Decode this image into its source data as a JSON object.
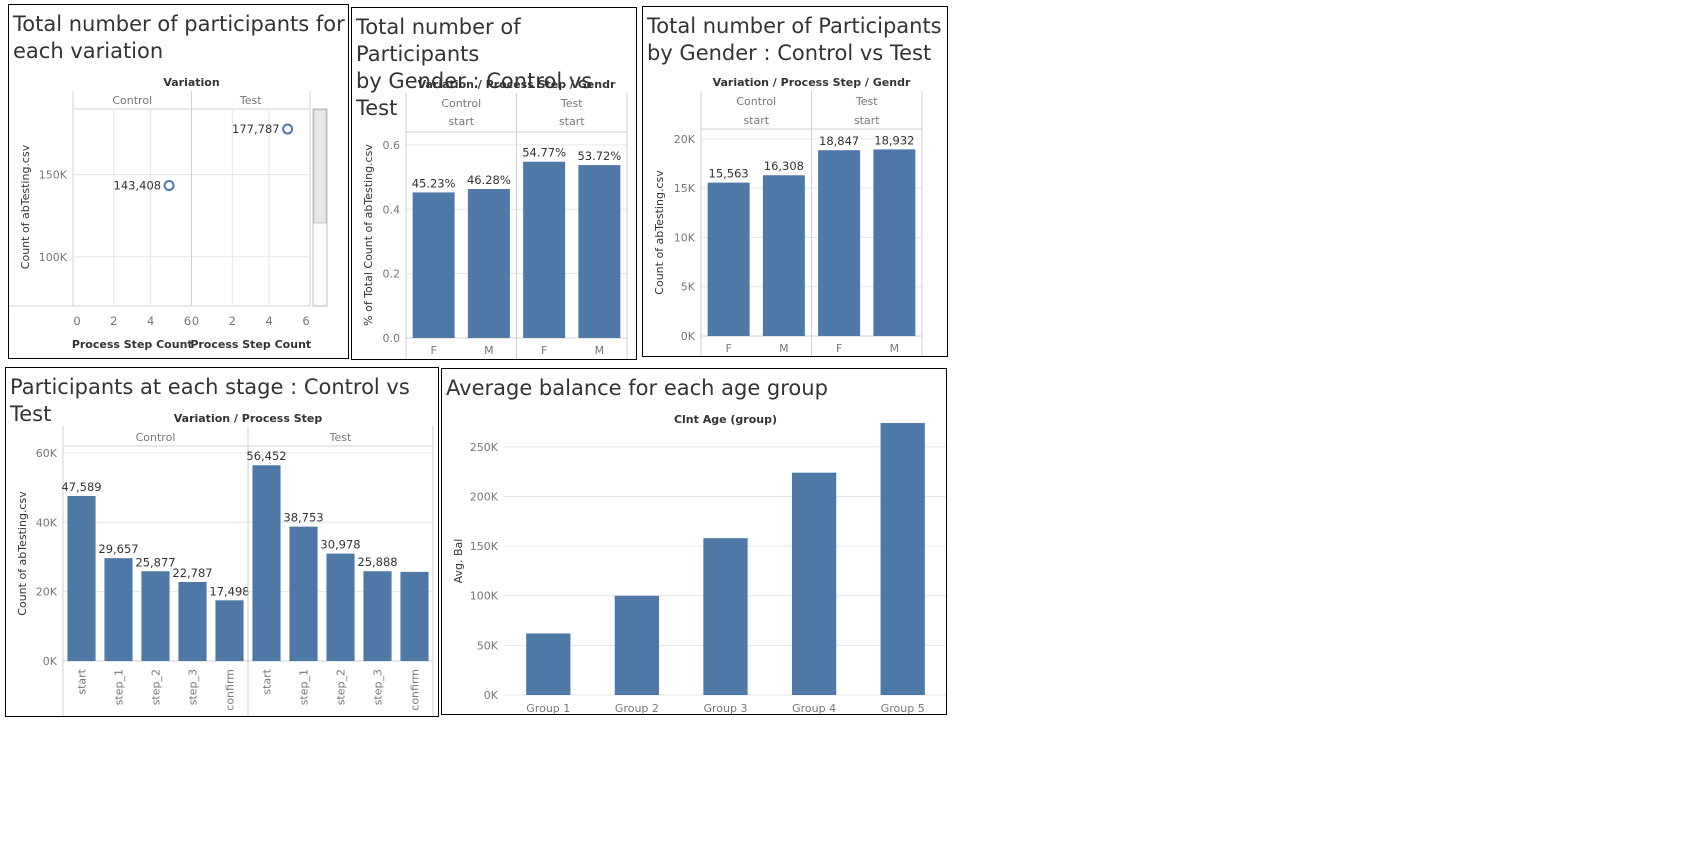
{
  "colors": {
    "bar": "#4e79a7",
    "grid": "#e6e6e6",
    "axis": "#d0d0d0",
    "text": "#333333",
    "tick": "#777777"
  },
  "chart_data": [
    {
      "id": "c1",
      "type": "scatter",
      "title": "Total number of participants for\neach variation",
      "header": "Variation",
      "ylabel": "Count of abTesting.csv",
      "xlabel": "Process Step Count",
      "ylim": [
        70000,
        190000
      ],
      "yticks": [
        {
          "v": 100000,
          "label": "100K"
        },
        {
          "v": 150000,
          "label": "150K"
        }
      ],
      "xlim": [
        0,
        6
      ],
      "xticks": [
        "0",
        "2",
        "4",
        "6"
      ],
      "panes": [
        {
          "name": "Control",
          "points": [
            {
              "x": 5,
              "y": 143408,
              "label": "143,408"
            }
          ]
        },
        {
          "name": "Test",
          "points": [
            {
              "x": 5,
              "y": 177787,
              "label": "177,787"
            }
          ]
        }
      ]
    },
    {
      "id": "c2",
      "type": "bar",
      "title": "Total number of Participants\nby Gender : Control vs Test",
      "header": "Variation  /  Process Step  /  Gendr",
      "ylabel": "% of Total Count of abTesting.csv",
      "ylim": [
        0,
        0.64
      ],
      "yticks": [
        {
          "v": 0,
          "label": "0.0"
        },
        {
          "v": 0.2,
          "label": "0.2"
        },
        {
          "v": 0.4,
          "label": "0.4"
        },
        {
          "v": 0.6,
          "label": "0.6"
        }
      ],
      "groups": [
        {
          "name": "Control",
          "step": "start",
          "categories": [
            "F",
            "M"
          ],
          "values": [
            0.4523,
            0.4628
          ],
          "labels": [
            "45.23%",
            "46.28%"
          ]
        },
        {
          "name": "Test",
          "step": "start",
          "categories": [
            "F",
            "M"
          ],
          "values": [
            0.5477,
            0.5372
          ],
          "labels": [
            "54.77%",
            "53.72%"
          ]
        }
      ]
    },
    {
      "id": "c3",
      "type": "bar",
      "title": "Total number of Participants\nby Gender : Control vs Test",
      "header": "Variation  /  Process Step  /  Gendr",
      "ylabel": "Count of abTesting.csv",
      "ylim": [
        0,
        21000
      ],
      "yticks": [
        {
          "v": 0,
          "label": "0K"
        },
        {
          "v": 5000,
          "label": "5K"
        },
        {
          "v": 10000,
          "label": "10K"
        },
        {
          "v": 15000,
          "label": "15K"
        },
        {
          "v": 20000,
          "label": "20K"
        }
      ],
      "groups": [
        {
          "name": "Control",
          "step": "start",
          "categories": [
            "F",
            "M"
          ],
          "values": [
            15563,
            16308
          ],
          "labels": [
            "15,563",
            "16,308"
          ]
        },
        {
          "name": "Test",
          "step": "start",
          "categories": [
            "F",
            "M"
          ],
          "values": [
            18847,
            18932
          ],
          "labels": [
            "18,847",
            "18,932"
          ]
        }
      ]
    },
    {
      "id": "c4",
      "type": "bar",
      "title": "Participants at each stage : Control vs Test",
      "header": "Variation  /  Process Step",
      "ylabel": "Count of abTesting.csv",
      "ylim": [
        0,
        62000
      ],
      "yticks": [
        {
          "v": 0,
          "label": "0K"
        },
        {
          "v": 20000,
          "label": "20K"
        },
        {
          "v": 40000,
          "label": "40K"
        },
        {
          "v": 60000,
          "label": "60K"
        }
      ],
      "groups": [
        {
          "name": "Control",
          "categories": [
            "start",
            "step_1",
            "step_2",
            "step_3",
            "confirm"
          ],
          "values": [
            47589,
            29657,
            25877,
            22787,
            17498
          ],
          "labels": [
            "47,589",
            "29,657",
            "25,877",
            "22,787",
            "17,498"
          ]
        },
        {
          "name": "Test",
          "categories": [
            "start",
            "step_1",
            "step_2",
            "step_3",
            "confirm"
          ],
          "values": [
            56452,
            38753,
            30978,
            25888,
            25700
          ],
          "labels": [
            "56,452",
            "38,753",
            "30,978",
            "25,888",
            ""
          ]
        }
      ]
    },
    {
      "id": "c5",
      "type": "bar",
      "title": "Average balance for each age group",
      "header": "Clnt Age (group)",
      "ylabel": "Avg. Bal",
      "ylim": [
        0,
        270000
      ],
      "yticks": [
        {
          "v": 0,
          "label": "0K"
        },
        {
          "v": 50000,
          "label": "50K"
        },
        {
          "v": 100000,
          "label": "100K"
        },
        {
          "v": 150000,
          "label": "150K"
        },
        {
          "v": 200000,
          "label": "200K"
        },
        {
          "v": 250000,
          "label": "250K"
        }
      ],
      "categories": [
        "Group 1",
        "Group 2",
        "Group 3",
        "Group 4",
        "Group 5"
      ],
      "values": [
        62000,
        100000,
        158000,
        224000,
        274000
      ]
    }
  ]
}
